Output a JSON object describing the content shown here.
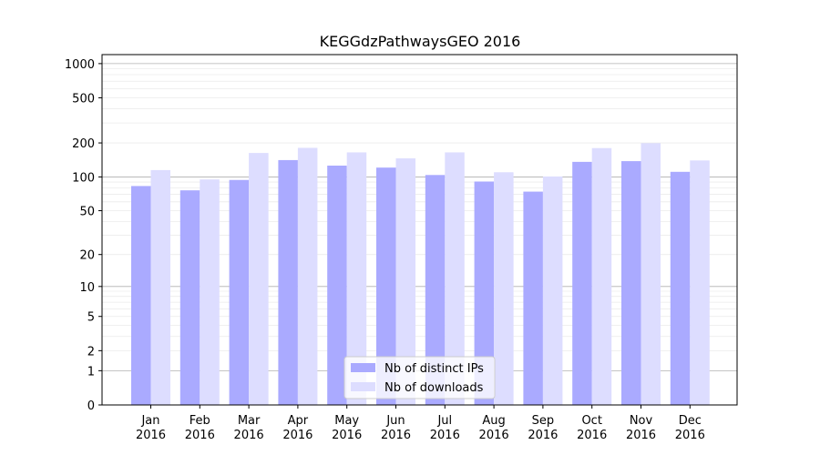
{
  "chart_data": {
    "type": "bar",
    "title": "KEGGdzPathwaysGEO 2016",
    "yscale": "log(1+y)",
    "ylim": [
      0,
      1200
    ],
    "yticks": [
      0,
      1,
      2,
      5,
      10,
      20,
      50,
      100,
      200,
      500,
      1000
    ],
    "ytick_labels": [
      "0",
      "1",
      "2",
      "5",
      "10",
      "20",
      "50",
      "100",
      "200",
      "500",
      "1000"
    ],
    "categories": [
      "Jan\n2016",
      "Feb\n2016",
      "Mar\n2016",
      "Apr\n2016",
      "May\n2016",
      "Jun\n2016",
      "Jul\n2016",
      "Aug\n2016",
      "Sep\n2016",
      "Oct\n2016",
      "Nov\n2016",
      "Dec\n2016"
    ],
    "series": [
      {
        "name": "Nb of distinct IPs",
        "color": "#aaaaff",
        "values": [
          83,
          76,
          94,
          141,
          126,
          121,
          104,
          91,
          74,
          136,
          138,
          111
        ]
      },
      {
        "name": "Nb of downloads",
        "color": "#ddddff",
        "values": [
          115,
          95,
          163,
          181,
          165,
          146,
          165,
          110,
          101,
          180,
          199,
          140
        ]
      }
    ],
    "grid": true,
    "legend_position": "bottom-center"
  }
}
